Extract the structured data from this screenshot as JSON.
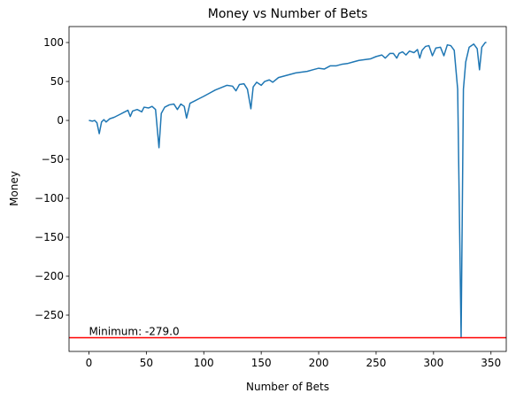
{
  "chart_data": {
    "type": "line",
    "title": "Money vs Number of Bets",
    "x_label": "Number of Bets",
    "y_label": "Money",
    "x": [
      0,
      3,
      5,
      7,
      9,
      11,
      13,
      15,
      18,
      22,
      26,
      30,
      34,
      36,
      38,
      42,
      46,
      48,
      52,
      55,
      58,
      61,
      63,
      66,
      70,
      74,
      77,
      80,
      83,
      85,
      88,
      92,
      96,
      100,
      105,
      110,
      115,
      120,
      125,
      128,
      131,
      135,
      138,
      141,
      143,
      146,
      150,
      153,
      157,
      160,
      165,
      170,
      175,
      180,
      185,
      190,
      195,
      200,
      205,
      210,
      215,
      220,
      225,
      230,
      235,
      240,
      245,
      250,
      255,
      258,
      262,
      265,
      268,
      270,
      273,
      276,
      279,
      283,
      286,
      288,
      290,
      293,
      296,
      299,
      302,
      306,
      309,
      312,
      315,
      318,
      321,
      324,
      326,
      328,
      331,
      335,
      338,
      340,
      342,
      345,
      346
    ],
    "series": [
      {
        "name": "Money",
        "color": "#1f77b4",
        "values": [
          0,
          -1,
          0,
          -3,
          -17,
          -2,
          1,
          -2,
          2,
          4,
          7,
          10,
          13,
          5,
          12,
          14,
          11,
          17,
          16,
          18,
          14,
          -35,
          9,
          17,
          20,
          21,
          14,
          21,
          18,
          3,
          22,
          25,
          28,
          31,
          35,
          39,
          42,
          45,
          44,
          38,
          46,
          47,
          40,
          15,
          43,
          49,
          45,
          50,
          52,
          49,
          55,
          57,
          59,
          61,
          62,
          63,
          65,
          67,
          66,
          70,
          70,
          72,
          73,
          75,
          77,
          78,
          79,
          82,
          84,
          80,
          86,
          86,
          80,
          86,
          88,
          84,
          89,
          87,
          91,
          80,
          90,
          95,
          96,
          83,
          93,
          94,
          83,
          97,
          96,
          90,
          40,
          -279,
          40,
          75,
          94,
          98,
          92,
          65,
          94,
          100,
          100
        ]
      }
    ],
    "hline": {
      "value": -279,
      "color": "#ff0000",
      "label": "Minimum: -279.0"
    },
    "xlim": [
      -17.3,
      363.3
    ],
    "ylim": [
      -296.6,
      120.5
    ],
    "xticks": [
      0,
      50,
      100,
      150,
      200,
      250,
      300,
      350
    ],
    "yticks": [
      {
        "value": -250,
        "label": "−250"
      },
      {
        "value": -200,
        "label": "−200"
      },
      {
        "value": -150,
        "label": "−150"
      },
      {
        "value": -100,
        "label": "−100"
      },
      {
        "value": -50,
        "label": "−50"
      },
      0,
      50,
      100
    ]
  }
}
